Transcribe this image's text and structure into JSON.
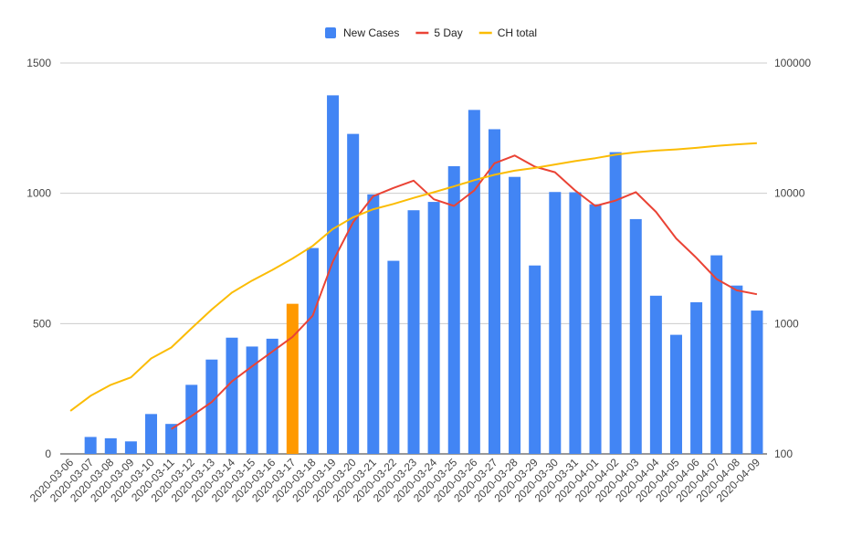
{
  "chart_data": {
    "type": "bar",
    "title": "",
    "xlabel": "",
    "ylabel": "",
    "categories": [
      "2020-03-06",
      "2020-03-07",
      "2020-03-08",
      "2020-03-09",
      "2020-03-10",
      "2020-03-11",
      "2020-03-12",
      "2020-03-13",
      "2020-03-14",
      "2020-03-15",
      "2020-03-16",
      "2020-03-17",
      "2020-03-18",
      "2020-03-19",
      "2020-03-20",
      "2020-03-21",
      "2020-03-22",
      "2020-03-23",
      "2020-03-24",
      "2020-03-25",
      "2020-03-26",
      "2020-03-27",
      "2020-03-28",
      "2020-03-29",
      "2020-03-30",
      "2020-03-31",
      "2020-04-01",
      "2020-04-02",
      "2020-04-03",
      "2020-04-04",
      "2020-04-05",
      "2020-04-06",
      "2020-04-07",
      "2020-04-08",
      "2020-04-09"
    ],
    "highlight_category": "2020-03-17",
    "series": [
      {
        "name": "New Cases",
        "type": "bar",
        "axis": "left",
        "color": "#4285f4",
        "values": [
          null,
          65,
          60,
          48,
          153,
          115,
          265,
          362,
          446,
          412,
          442,
          576,
          790,
          1376,
          1228,
          996,
          741,
          935,
          967,
          1104,
          1320,
          1246,
          1063,
          723,
          1005,
          1004,
          958,
          1158,
          901,
          607,
          457,
          582,
          762,
          646,
          550
        ]
      },
      {
        "name": "5 Day",
        "type": "line",
        "axis": "right",
        "color": "#ea4335",
        "values": [
          null,
          null,
          null,
          null,
          null,
          155,
          195,
          250,
          360,
          470,
          610,
          790,
          1150,
          3000,
          6000,
          9500,
          11000,
          12500,
          9000,
          8000,
          10500,
          17000,
          19500,
          16000,
          14500,
          10500,
          8000,
          8800,
          10200,
          7200,
          4500,
          3200,
          2200,
          1800,
          1680
        ]
      },
      {
        "name": "CH total",
        "type": "line",
        "axis": "right",
        "color": "#fbbc04",
        "values": [
          214,
          279,
          339,
          387,
          540,
          655,
          920,
          1282,
          1728,
          2140,
          2582,
          3158,
          3948,
          5324,
          6552,
          7548,
          8289,
          9224,
          10191,
          11295,
          12615,
          13861,
          14924,
          15647,
          16652,
          17656,
          18614,
          19772,
          20673,
          21280,
          21737,
          22319,
          23081,
          23727,
          24277
        ]
      }
    ],
    "y_left": {
      "min": 0,
      "max": 1500,
      "ticks": [
        "0",
        "500",
        "1000",
        "1500"
      ],
      "scale": "linear"
    },
    "y_right": {
      "min": 100,
      "max": 100000,
      "ticks": [
        "100",
        "1000",
        "10000",
        "100000"
      ],
      "scale": "log"
    },
    "grid": true,
    "legend_position": "top-center",
    "highlight_color": "#ff9900"
  }
}
